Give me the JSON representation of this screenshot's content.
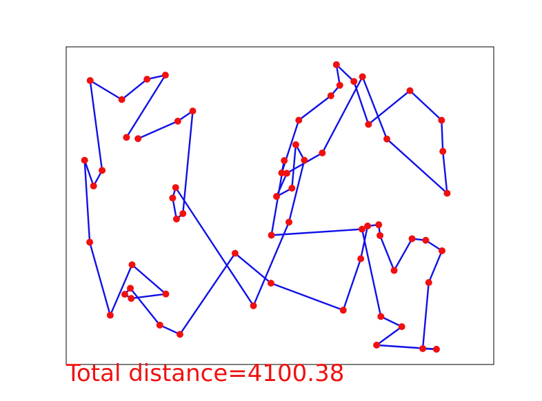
{
  "caption": "Total distance=4100.38",
  "colors": {
    "route": "#1010e6",
    "point": "#f01010",
    "caption": "#f01010",
    "frame": "#000000"
  },
  "chart_data": {
    "type": "line",
    "title": "",
    "xlabel": "",
    "ylabel": "",
    "xlim": [
      0,
      100
    ],
    "ylim": [
      0,
      100
    ],
    "grid": false,
    "axes_ticks": false,
    "route": [
      [
        16.8,
        71.1
      ],
      [
        26.1,
        76.6
      ],
      [
        29.6,
        79.8
      ],
      [
        27.3,
        47.5
      ],
      [
        25.8,
        45.8
      ],
      [
        24.9,
        52.4
      ],
      [
        25.6,
        55.7
      ],
      [
        43.8,
        18.5
      ],
      [
        52.1,
        44.8
      ],
      [
        55.7,
        64.3
      ],
      [
        53.7,
        69.2
      ],
      [
        52.8,
        55.5
      ],
      [
        49.2,
        52.9
      ],
      [
        51.6,
        60.2
      ],
      [
        59.9,
        66.6
      ],
      [
        69.3,
        90.6
      ],
      [
        75.0,
        71.0
      ],
      [
        89.1,
        53.9
      ],
      [
        88.1,
        67.1
      ],
      [
        87.8,
        76.9
      ],
      [
        80.4,
        86.2
      ],
      [
        70.7,
        75.6
      ],
      [
        67.3,
        89.1
      ],
      [
        63.2,
        94.4
      ],
      [
        64.0,
        87.9
      ],
      [
        61.9,
        84.6
      ],
      [
        54.4,
        76.9
      ],
      [
        50.4,
        60.3
      ],
      [
        51.0,
        64.2
      ],
      [
        48.0,
        40.7
      ],
      [
        69.2,
        42.6
      ],
      [
        73.6,
        15.1
      ],
      [
        78.5,
        11.9
      ],
      [
        72.6,
        6.1
      ],
      [
        86.6,
        4.8
      ],
      [
        83.4,
        5.0
      ],
      [
        84.8,
        25.8
      ],
      [
        87.9,
        35.8
      ],
      [
        84.1,
        39.1
      ],
      [
        80.9,
        39.6
      ],
      [
        76.7,
        29.6
      ],
      [
        73.4,
        40.6
      ],
      [
        73.1,
        44.0
      ],
      [
        70.5,
        43.6
      ],
      [
        68.9,
        33.3
      ],
      [
        64.8,
        17.1
      ],
      [
        47.9,
        25.6
      ],
      [
        39.5,
        35.0
      ],
      [
        26.6,
        9.5
      ],
      [
        21.9,
        12.4
      ],
      [
        15.0,
        24.0
      ],
      [
        13.7,
        22.1
      ],
      [
        15.2,
        20.8
      ],
      [
        23.3,
        22.2
      ],
      [
        15.4,
        31.4
      ],
      [
        10.3,
        15.5
      ],
      [
        5.5,
        38.5
      ],
      [
        4.3,
        64.3
      ],
      [
        6.4,
        56.2
      ],
      [
        8.4,
        61.1
      ],
      [
        5.6,
        89.4
      ],
      [
        13.0,
        83.4
      ],
      [
        18.9,
        89.8
      ],
      [
        23.2,
        91.1
      ],
      [
        14.1,
        71.5
      ]
    ]
  }
}
